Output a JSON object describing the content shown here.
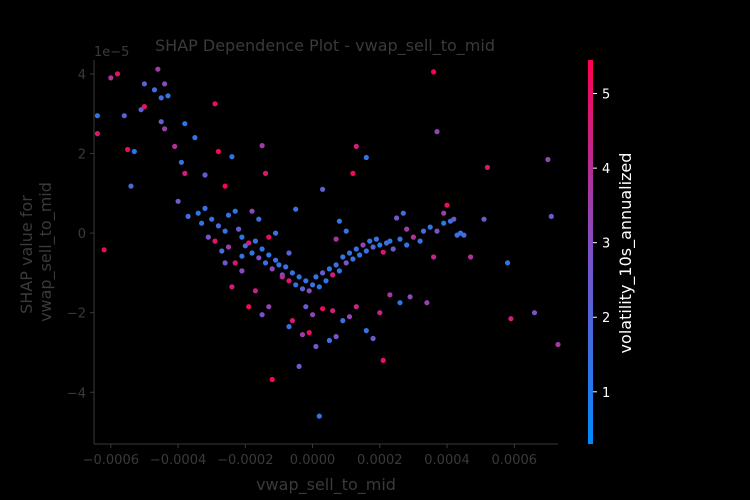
{
  "chart_data": {
    "type": "scatter",
    "title": "SHAP Dependence Plot - vwap_sell_to_mid",
    "xlabel": "vwap_sell_to_mid",
    "ylabel_lines": [
      "SHAP value for",
      "vwap_sell_to_mid"
    ],
    "y_offset_label": "1e−5",
    "xlim": [
      -0.00065,
      0.00073
    ],
    "ylim": [
      -5.3,
      4.35
    ],
    "x_ticks": [
      -0.0006,
      -0.0004,
      -0.0002,
      0.0,
      0.0002,
      0.0004,
      0.0006
    ],
    "x_tick_labels": [
      "−0.0006",
      "−0.0004",
      "−0.0002",
      "0.0000",
      "0.0002",
      "0.0004",
      "0.0006"
    ],
    "y_ticks": [
      -4,
      -2,
      0,
      2,
      4
    ],
    "y_tick_labels": [
      "−4",
      "−2",
      "0",
      "2",
      "4"
    ],
    "grid": false,
    "colorbar": {
      "label": "volatility_10s_annualized",
      "range": [
        0.3,
        5.45
      ],
      "ticks": [
        1,
        2,
        3,
        4,
        5
      ],
      "tick_labels": [
        "1",
        "2",
        "3",
        "4",
        "5"
      ],
      "low_color": "#008afb",
      "mid_color": "#7c52c6",
      "high_color": "#ff0052"
    },
    "points": [
      [
        -0.00064,
        2.95,
        1.2
      ],
      [
        -0.00064,
        2.5,
        4.8
      ],
      [
        -0.00062,
        -0.42,
        5.1
      ],
      [
        -0.0006,
        3.9,
        3.9
      ],
      [
        -0.00058,
        4.0,
        5.0
      ],
      [
        -0.00056,
        2.95,
        2.2
      ],
      [
        -0.00055,
        2.1,
        5.2
      ],
      [
        -0.00054,
        1.18,
        1.8
      ],
      [
        -0.00053,
        2.05,
        1.3
      ],
      [
        -0.00051,
        3.1,
        2.1
      ],
      [
        -0.0005,
        3.18,
        4.9
      ],
      [
        -0.0005,
        3.75,
        2.3
      ],
      [
        -0.00047,
        3.6,
        1.6
      ],
      [
        -0.00046,
        4.12,
        3.6
      ],
      [
        -0.00045,
        3.4,
        1.8
      ],
      [
        -0.00045,
        2.8,
        2.4
      ],
      [
        -0.00044,
        3.75,
        3.1
      ],
      [
        -0.00044,
        2.62,
        3.5
      ],
      [
        -0.00043,
        3.45,
        1.2
      ],
      [
        -0.00041,
        2.18,
        3.9
      ],
      [
        -0.00039,
        1.78,
        1.5
      ],
      [
        -0.00038,
        1.5,
        4.5
      ],
      [
        -0.00038,
        2.75,
        1.2
      ],
      [
        -0.00035,
        2.4,
        1.4
      ],
      [
        -0.00032,
        1.46,
        2.3
      ],
      [
        -0.00029,
        3.25,
        5.0
      ],
      [
        -0.00028,
        2.05,
        5.2
      ],
      [
        -0.00026,
        1.18,
        5.3
      ],
      [
        -0.00024,
        1.92,
        1.3
      ],
      [
        -0.00015,
        2.2,
        3.6
      ],
      [
        -0.00014,
        1.5,
        4.9
      ],
      [
        -0.0004,
        0.8,
        2.6
      ],
      [
        -0.00037,
        0.42,
        1.6
      ],
      [
        -0.00034,
        0.5,
        1.2
      ],
      [
        -0.00032,
        0.62,
        1.6
      ],
      [
        -0.0003,
        0.35,
        1.4
      ],
      [
        -0.00028,
        0.18,
        1.8
      ],
      [
        -0.00026,
        0.05,
        1.3
      ],
      [
        -0.00025,
        0.45,
        1.5
      ],
      [
        -0.00023,
        0.55,
        1.2
      ],
      [
        -0.00022,
        0.1,
        2.4
      ],
      [
        -0.00021,
        -0.1,
        1.3
      ],
      [
        -0.0002,
        -0.32,
        1.6
      ],
      [
        -0.00019,
        -0.25,
        4.5
      ],
      [
        -0.00018,
        -0.5,
        1.3
      ],
      [
        -0.00017,
        -0.2,
        1.5
      ],
      [
        -0.00016,
        -0.62,
        2.9
      ],
      [
        -0.00015,
        -0.4,
        1.4
      ],
      [
        -0.00014,
        -0.75,
        1.6
      ],
      [
        -0.00013,
        -0.55,
        1.3
      ],
      [
        -0.00012,
        -0.9,
        3.2
      ],
      [
        -0.00011,
        -0.68,
        1.5
      ],
      [
        -0.0001,
        -0.8,
        1.2
      ],
      [
        -9e-05,
        -1.05,
        2.6
      ],
      [
        -8e-05,
        -0.85,
        1.5
      ],
      [
        -7e-05,
        -1.2,
        4.8
      ],
      [
        -6e-05,
        -1.0,
        1.3
      ],
      [
        -5e-05,
        -1.3,
        1.6
      ],
      [
        -4e-05,
        -1.1,
        1.2
      ],
      [
        -3e-05,
        -1.4,
        2.2
      ],
      [
        -2e-05,
        -1.2,
        1.4
      ],
      [
        -1e-05,
        -1.45,
        3.1
      ],
      [
        0.0,
        -1.3,
        1.5
      ],
      [
        1e-05,
        -1.1,
        1.3
      ],
      [
        2e-05,
        -1.35,
        1.2
      ],
      [
        3e-05,
        -1.0,
        2.4
      ],
      [
        4e-05,
        -1.2,
        1.4
      ],
      [
        5e-05,
        -0.9,
        1.3
      ],
      [
        6e-05,
        -1.05,
        4.5
      ],
      [
        7e-05,
        -0.8,
        1.6
      ],
      [
        8e-05,
        -0.95,
        1.2
      ],
      [
        9e-05,
        -0.6,
        1.5
      ],
      [
        0.0001,
        -0.75,
        2.8
      ],
      [
        0.00011,
        -0.5,
        1.3
      ],
      [
        0.00012,
        -0.65,
        1.4
      ],
      [
        0.00013,
        -0.4,
        1.6
      ],
      [
        0.00014,
        -0.55,
        1.2
      ],
      [
        0.00015,
        -0.3,
        3.2
      ],
      [
        0.00016,
        -0.45,
        1.5
      ],
      [
        0.00017,
        -0.2,
        1.3
      ],
      [
        0.00018,
        -0.35,
        2.1
      ],
      [
        0.00019,
        -0.15,
        1.4
      ],
      [
        0.0002,
        -0.3,
        1.2
      ],
      [
        0.00021,
        -0.48,
        4.7
      ],
      [
        0.00022,
        -0.25,
        1.6
      ],
      [
        0.00023,
        -0.2,
        1.3
      ],
      [
        0.00024,
        -0.4,
        2.5
      ],
      [
        0.00026,
        -0.15,
        1.4
      ],
      [
        0.00028,
        -0.3,
        1.2
      ],
      [
        0.0003,
        -0.1,
        3.8
      ],
      [
        0.00032,
        -0.2,
        1.5
      ],
      [
        0.00033,
        0.05,
        1.6
      ],
      [
        0.00035,
        0.15,
        1.3
      ],
      [
        0.00037,
        0.05,
        2.9
      ],
      [
        0.00039,
        0.25,
        1.2
      ],
      [
        0.00041,
        0.3,
        1.4
      ],
      [
        0.00043,
        -0.05,
        1.6
      ],
      [
        -0.00029,
        -0.2,
        4.9
      ],
      [
        -0.00026,
        -0.75,
        2.6
      ],
      [
        -0.00024,
        -1.35,
        4.6
      ],
      [
        -0.00021,
        -0.95,
        3.1
      ],
      [
        -0.00019,
        -1.85,
        5.1
      ],
      [
        -0.00017,
        -1.45,
        4.4
      ],
      [
        -0.00015,
        -2.05,
        2.9
      ],
      [
        -0.00013,
        -1.85,
        3.4
      ],
      [
        -0.00012,
        -3.68,
        5.2
      ],
      [
        -9e-05,
        -1.1,
        4.1
      ],
      [
        -7e-05,
        -2.35,
        1.6
      ],
      [
        -6e-05,
        -2.2,
        4.7
      ],
      [
        -4e-05,
        -3.35,
        2.4
      ],
      [
        -3e-05,
        -2.55,
        3.5
      ],
      [
        -2e-05,
        -1.85,
        2.5
      ],
      [
        -1e-05,
        -2.5,
        5.0
      ],
      [
        0.0,
        -2.05,
        3.3
      ],
      [
        1e-05,
        -2.85,
        2.7
      ],
      [
        2e-05,
        -4.6,
        1.3
      ],
      [
        3e-05,
        -1.9,
        5.2
      ],
      [
        5e-05,
        -2.7,
        1.5
      ],
      [
        6e-05,
        -1.95,
        4.5
      ],
      [
        7e-05,
        -2.6,
        2.8
      ],
      [
        9e-05,
        -2.2,
        1.6
      ],
      [
        0.00011,
        -2.1,
        3.3
      ],
      [
        0.00013,
        -1.85,
        4.3
      ],
      [
        0.00016,
        -2.45,
        1.4
      ],
      [
        0.00018,
        -2.65,
        2.6
      ],
      [
        0.00021,
        -3.2,
        4.8
      ],
      [
        0.00023,
        -1.55,
        3.7
      ],
      [
        0.00026,
        -1.75,
        1.3
      ],
      [
        0.00029,
        -1.6,
        3.1
      ],
      [
        0.00034,
        -1.75,
        3.4
      ],
      [
        0.00036,
        -0.6,
        4.2
      ],
      [
        0.00039,
        0.5,
        3.6
      ],
      [
        0.0004,
        0.7,
        5.0
      ],
      [
        0.00042,
        0.35,
        2.6
      ],
      [
        0.00044,
        0.0,
        1.4
      ],
      [
        0.00047,
        -0.6,
        3.9
      ],
      [
        0.00051,
        0.35,
        2.7
      ],
      [
        0.00052,
        1.65,
        4.9
      ],
      [
        0.00058,
        -0.75,
        1.3
      ],
      [
        0.00059,
        -2.15,
        4.5
      ],
      [
        0.00066,
        -2.0,
        2.9
      ],
      [
        0.0007,
        1.85,
        3.3
      ],
      [
        0.00071,
        0.42,
        2.4
      ],
      [
        0.00073,
        -2.8,
        3.7
      ],
      [
        0.00036,
        4.05,
        5.4
      ],
      [
        0.00037,
        2.55,
        3.3
      ],
      [
        0.00013,
        2.18,
        4.6
      ],
      [
        0.00012,
        1.5,
        5.2
      ],
      [
        0.00016,
        1.9,
        1.4
      ],
      [
        8e-05,
        0.3,
        1.3
      ],
      [
        0.0001,
        0.05,
        1.5
      ],
      [
        7e-05,
        -0.15,
        3.9
      ],
      [
        0.00025,
        0.38,
        2.8
      ],
      [
        0.00027,
        0.5,
        1.5
      ],
      [
        0.00028,
        0.1,
        3.6
      ],
      [
        -0.00018,
        0.55,
        3.2
      ],
      [
        -0.00016,
        0.35,
        1.6
      ],
      [
        -0.00013,
        -0.1,
        5.1
      ],
      [
        -0.00011,
        0.0,
        1.4
      ],
      [
        -0.00033,
        0.25,
        1.3
      ],
      [
        -0.00031,
        -0.1,
        2.7
      ],
      [
        -0.00027,
        -0.45,
        1.6
      ],
      [
        -0.00025,
        -0.35,
        3.6
      ],
      [
        -0.00023,
        -0.75,
        4.9
      ],
      [
        -0.00021,
        -0.58,
        1.4
      ],
      [
        3e-05,
        1.1,
        2.3
      ],
      [
        -5e-05,
        0.6,
        1.5
      ],
      [
        -7e-05,
        -0.5,
        2.1
      ],
      [
        0.0002,
        -2.0,
        4.3
      ],
      [
        0.00045,
        -0.05,
        1.6
      ]
    ]
  }
}
